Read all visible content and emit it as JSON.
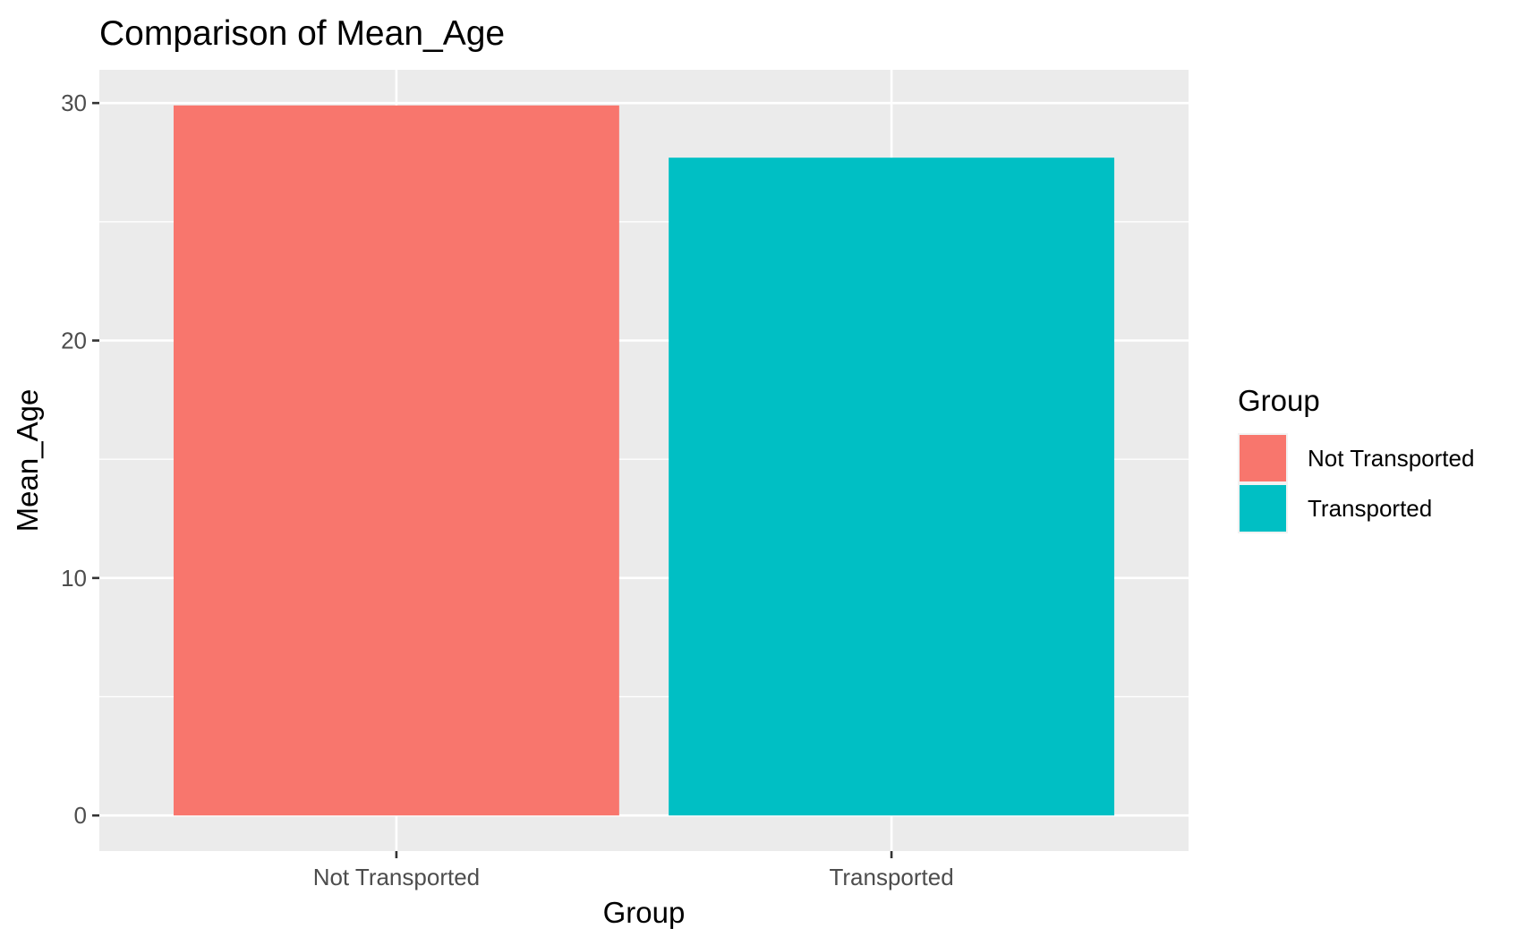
{
  "chart_data": {
    "type": "bar",
    "title": "Comparison of Mean_Age",
    "xlabel": "Group",
    "ylabel": "Mean_Age",
    "categories": [
      "Not Transported",
      "Transported"
    ],
    "values": [
      29.9,
      27.7
    ],
    "colors": [
      "#F8766D",
      "#00BFC4"
    ],
    "ylim": [
      -1.5,
      31.4
    ],
    "yticks": [
      0,
      10,
      20,
      30
    ],
    "y_minor_ticks": [
      5,
      15,
      25
    ],
    "grid": true,
    "panel_background": "#EBEBEB",
    "grid_color": "#FFFFFF",
    "legend": {
      "title": "Group",
      "placement": "right",
      "entries": [
        {
          "label": "Not Transported",
          "color": "#F8766D"
        },
        {
          "label": "Transported",
          "color": "#00BFC4"
        }
      ]
    }
  }
}
